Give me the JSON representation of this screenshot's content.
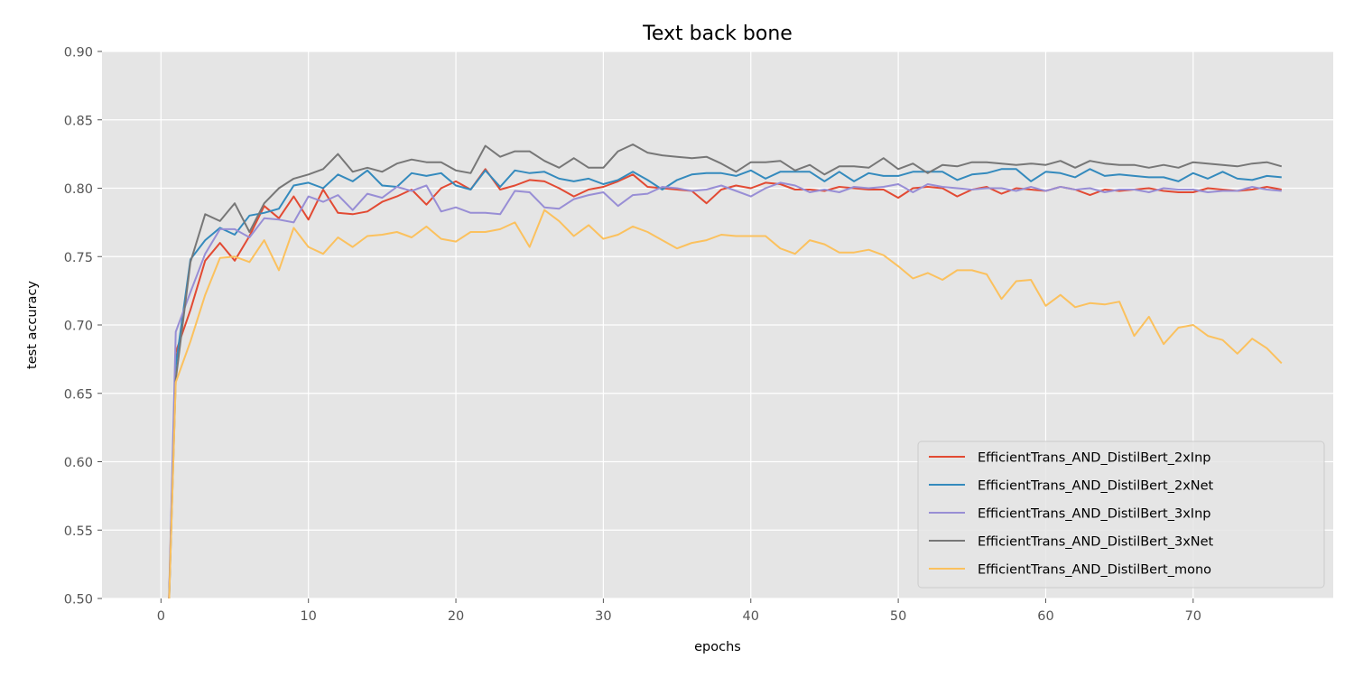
{
  "chart_data": {
    "type": "line",
    "title": "Text back bone",
    "xlabel": "epochs",
    "ylabel": "test accuracy",
    "xlim": [
      -4,
      79.5
    ],
    "ylim": [
      0.5,
      0.9
    ],
    "xticks": [
      0,
      10,
      20,
      30,
      40,
      50,
      60,
      70
    ],
    "yticks": [
      0.5,
      0.55,
      0.6,
      0.65,
      0.7,
      0.75,
      0.8,
      0.85,
      0.9
    ],
    "ytick_labels": [
      "0.50",
      "0.55",
      "0.60",
      "0.65",
      "0.70",
      "0.75",
      "0.80",
      "0.85",
      "0.90"
    ],
    "grid": true,
    "legend_position": "lower-right",
    "series": [
      {
        "name": "EfficientTrans_AND_DistilBert_2xInp",
        "color": "#E24A33",
        "x": [
          0.5,
          1,
          2,
          3,
          4,
          5,
          6,
          7,
          8,
          9,
          10,
          11,
          12,
          13,
          14,
          15,
          16,
          17,
          18,
          19,
          20,
          21,
          22,
          23,
          24,
          25,
          26,
          27,
          28,
          29,
          30,
          31,
          32,
          33,
          34,
          35,
          36,
          37,
          38,
          39,
          40,
          41,
          42,
          43,
          44,
          45,
          46,
          47,
          48,
          49,
          50,
          51,
          52,
          53,
          54,
          55,
          56,
          57,
          58,
          59,
          60,
          61,
          62,
          63,
          64,
          65,
          66,
          67,
          68,
          69,
          70,
          71,
          72,
          73,
          74,
          75,
          76
        ],
        "y": [
          0.48,
          0.68,
          0.711,
          0.747,
          0.76,
          0.747,
          0.765,
          0.787,
          0.778,
          0.794,
          0.777,
          0.799,
          0.782,
          0.781,
          0.783,
          0.79,
          0.794,
          0.799,
          0.788,
          0.8,
          0.805,
          0.799,
          0.814,
          0.799,
          0.802,
          0.806,
          0.805,
          0.8,
          0.794,
          0.799,
          0.801,
          0.805,
          0.81,
          0.801,
          0.8,
          0.799,
          0.798,
          0.789,
          0.799,
          0.802,
          0.8,
          0.804,
          0.803,
          0.799,
          0.799,
          0.798,
          0.801,
          0.8,
          0.799,
          0.799,
          0.793,
          0.8,
          0.801,
          0.8,
          0.794,
          0.799,
          0.801,
          0.796,
          0.8,
          0.799,
          0.798,
          0.801,
          0.799,
          0.795,
          0.799,
          0.798,
          0.799,
          0.8,
          0.798,
          0.797,
          0.797,
          0.8,
          0.799,
          0.798,
          0.799,
          0.801,
          0.799
        ]
      },
      {
        "name": "EfficientTrans_AND_DistilBert_2xNet",
        "color": "#348ABD",
        "x": [
          0.5,
          1,
          2,
          3,
          4,
          5,
          6,
          7,
          8,
          9,
          10,
          11,
          12,
          13,
          14,
          15,
          16,
          17,
          18,
          19,
          20,
          21,
          22,
          23,
          24,
          25,
          26,
          27,
          28,
          29,
          30,
          31,
          32,
          33,
          34,
          35,
          36,
          37,
          38,
          39,
          40,
          41,
          42,
          43,
          44,
          45,
          46,
          47,
          48,
          49,
          50,
          51,
          52,
          53,
          54,
          55,
          56,
          57,
          58,
          59,
          60,
          61,
          62,
          63,
          64,
          65,
          66,
          67,
          68,
          69,
          70,
          71,
          72,
          73,
          74,
          75,
          76
        ],
        "y": [
          0.48,
          0.67,
          0.748,
          0.762,
          0.771,
          0.766,
          0.78,
          0.782,
          0.785,
          0.802,
          0.804,
          0.8,
          0.81,
          0.805,
          0.813,
          0.802,
          0.801,
          0.811,
          0.809,
          0.811,
          0.802,
          0.799,
          0.813,
          0.801,
          0.813,
          0.811,
          0.812,
          0.807,
          0.805,
          0.807,
          0.803,
          0.806,
          0.812,
          0.806,
          0.799,
          0.806,
          0.81,
          0.811,
          0.811,
          0.809,
          0.813,
          0.807,
          0.812,
          0.812,
          0.812,
          0.805,
          0.812,
          0.805,
          0.811,
          0.809,
          0.809,
          0.812,
          0.812,
          0.812,
          0.806,
          0.81,
          0.811,
          0.814,
          0.814,
          0.805,
          0.812,
          0.811,
          0.808,
          0.814,
          0.809,
          0.81,
          0.809,
          0.808,
          0.808,
          0.805,
          0.811,
          0.807,
          0.812,
          0.807,
          0.806,
          0.809,
          0.808
        ]
      },
      {
        "name": "EfficientTrans_AND_DistilBert_3xInp",
        "color": "#988ED5",
        "x": [
          0.5,
          1,
          2,
          3,
          4,
          5,
          6,
          7,
          8,
          9,
          10,
          11,
          12,
          13,
          14,
          15,
          16,
          17,
          18,
          19,
          20,
          21,
          22,
          23,
          24,
          25,
          26,
          27,
          28,
          29,
          30,
          31,
          32,
          33,
          34,
          35,
          36,
          37,
          38,
          39,
          40,
          41,
          42,
          43,
          44,
          45,
          46,
          47,
          48,
          49,
          50,
          51,
          52,
          53,
          54,
          55,
          56,
          57,
          58,
          59,
          60,
          61,
          62,
          63,
          64,
          65,
          66,
          67,
          68,
          69,
          70,
          71,
          72,
          73,
          74,
          75,
          76
        ],
        "y": [
          0.48,
          0.695,
          0.724,
          0.752,
          0.77,
          0.77,
          0.764,
          0.778,
          0.777,
          0.775,
          0.794,
          0.79,
          0.795,
          0.784,
          0.796,
          0.793,
          0.801,
          0.798,
          0.802,
          0.783,
          0.786,
          0.782,
          0.782,
          0.781,
          0.798,
          0.797,
          0.786,
          0.785,
          0.792,
          0.795,
          0.797,
          0.787,
          0.795,
          0.796,
          0.801,
          0.8,
          0.798,
          0.799,
          0.802,
          0.798,
          0.794,
          0.8,
          0.804,
          0.802,
          0.797,
          0.799,
          0.797,
          0.801,
          0.8,
          0.801,
          0.803,
          0.797,
          0.803,
          0.801,
          0.8,
          0.799,
          0.8,
          0.8,
          0.798,
          0.801,
          0.798,
          0.801,
          0.799,
          0.8,
          0.797,
          0.799,
          0.799,
          0.797,
          0.8,
          0.799,
          0.799,
          0.797,
          0.798,
          0.798,
          0.801,
          0.799,
          0.798
        ]
      },
      {
        "name": "EfficientTrans_AND_DistilBert_3xNet",
        "color": "#777777",
        "x": [
          0.5,
          1,
          2,
          3,
          4,
          5,
          6,
          7,
          8,
          9,
          10,
          11,
          12,
          13,
          14,
          15,
          16,
          17,
          18,
          19,
          20,
          21,
          22,
          23,
          24,
          25,
          26,
          27,
          28,
          29,
          30,
          31,
          32,
          33,
          34,
          35,
          36,
          37,
          38,
          39,
          40,
          41,
          42,
          43,
          44,
          45,
          46,
          47,
          48,
          49,
          50,
          51,
          52,
          53,
          54,
          55,
          56,
          57,
          58,
          59,
          60,
          61,
          62,
          63,
          64,
          65,
          66,
          67,
          68,
          69,
          70,
          71,
          72,
          73,
          74,
          75,
          76
        ],
        "y": [
          0.48,
          0.66,
          0.746,
          0.781,
          0.776,
          0.789,
          0.768,
          0.789,
          0.8,
          0.807,
          0.81,
          0.814,
          0.825,
          0.812,
          0.815,
          0.812,
          0.818,
          0.821,
          0.819,
          0.819,
          0.813,
          0.811,
          0.831,
          0.823,
          0.827,
          0.827,
          0.82,
          0.815,
          0.822,
          0.815,
          0.815,
          0.827,
          0.832,
          0.826,
          0.824,
          0.823,
          0.822,
          0.823,
          0.818,
          0.812,
          0.819,
          0.819,
          0.82,
          0.813,
          0.817,
          0.81,
          0.816,
          0.816,
          0.815,
          0.822,
          0.814,
          0.818,
          0.811,
          0.817,
          0.816,
          0.819,
          0.819,
          0.818,
          0.817,
          0.818,
          0.817,
          0.82,
          0.815,
          0.82,
          0.818,
          0.817,
          0.817,
          0.815,
          0.817,
          0.815,
          0.819,
          0.818,
          0.817,
          0.816,
          0.818,
          0.819,
          0.816
        ]
      },
      {
        "name": "EfficientTrans_AND_DistilBert_mono",
        "color": "#FBC15E",
        "x": [
          0.5,
          1,
          2,
          3,
          4,
          5,
          6,
          7,
          8,
          9,
          10,
          11,
          12,
          13,
          14,
          15,
          16,
          17,
          18,
          19,
          20,
          21,
          22,
          23,
          24,
          25,
          26,
          27,
          28,
          29,
          30,
          31,
          32,
          33,
          34,
          35,
          36,
          37,
          38,
          39,
          40,
          41,
          42,
          43,
          44,
          45,
          46,
          47,
          48,
          49,
          50,
          51,
          52,
          53,
          54,
          55,
          56,
          57,
          58,
          59,
          60,
          61,
          62,
          63,
          64,
          65,
          66,
          67,
          68,
          69,
          70,
          71,
          72,
          73,
          74,
          75,
          76
        ],
        "y": [
          0.48,
          0.658,
          0.688,
          0.722,
          0.749,
          0.75,
          0.746,
          0.762,
          0.74,
          0.771,
          0.757,
          0.752,
          0.764,
          0.757,
          0.765,
          0.766,
          0.768,
          0.764,
          0.772,
          0.763,
          0.761,
          0.768,
          0.768,
          0.77,
          0.775,
          0.757,
          0.784,
          0.776,
          0.765,
          0.773,
          0.763,
          0.766,
          0.772,
          0.768,
          0.762,
          0.756,
          0.76,
          0.762,
          0.766,
          0.765,
          0.765,
          0.765,
          0.756,
          0.752,
          0.762,
          0.759,
          0.753,
          0.753,
          0.755,
          0.751,
          0.743,
          0.734,
          0.738,
          0.733,
          0.74,
          0.74,
          0.737,
          0.719,
          0.732,
          0.733,
          0.714,
          0.722,
          0.713,
          0.716,
          0.715,
          0.717,
          0.692,
          0.706,
          0.686,
          0.698,
          0.7,
          0.692,
          0.689,
          0.679,
          0.69,
          0.683,
          0.672
        ]
      }
    ]
  }
}
